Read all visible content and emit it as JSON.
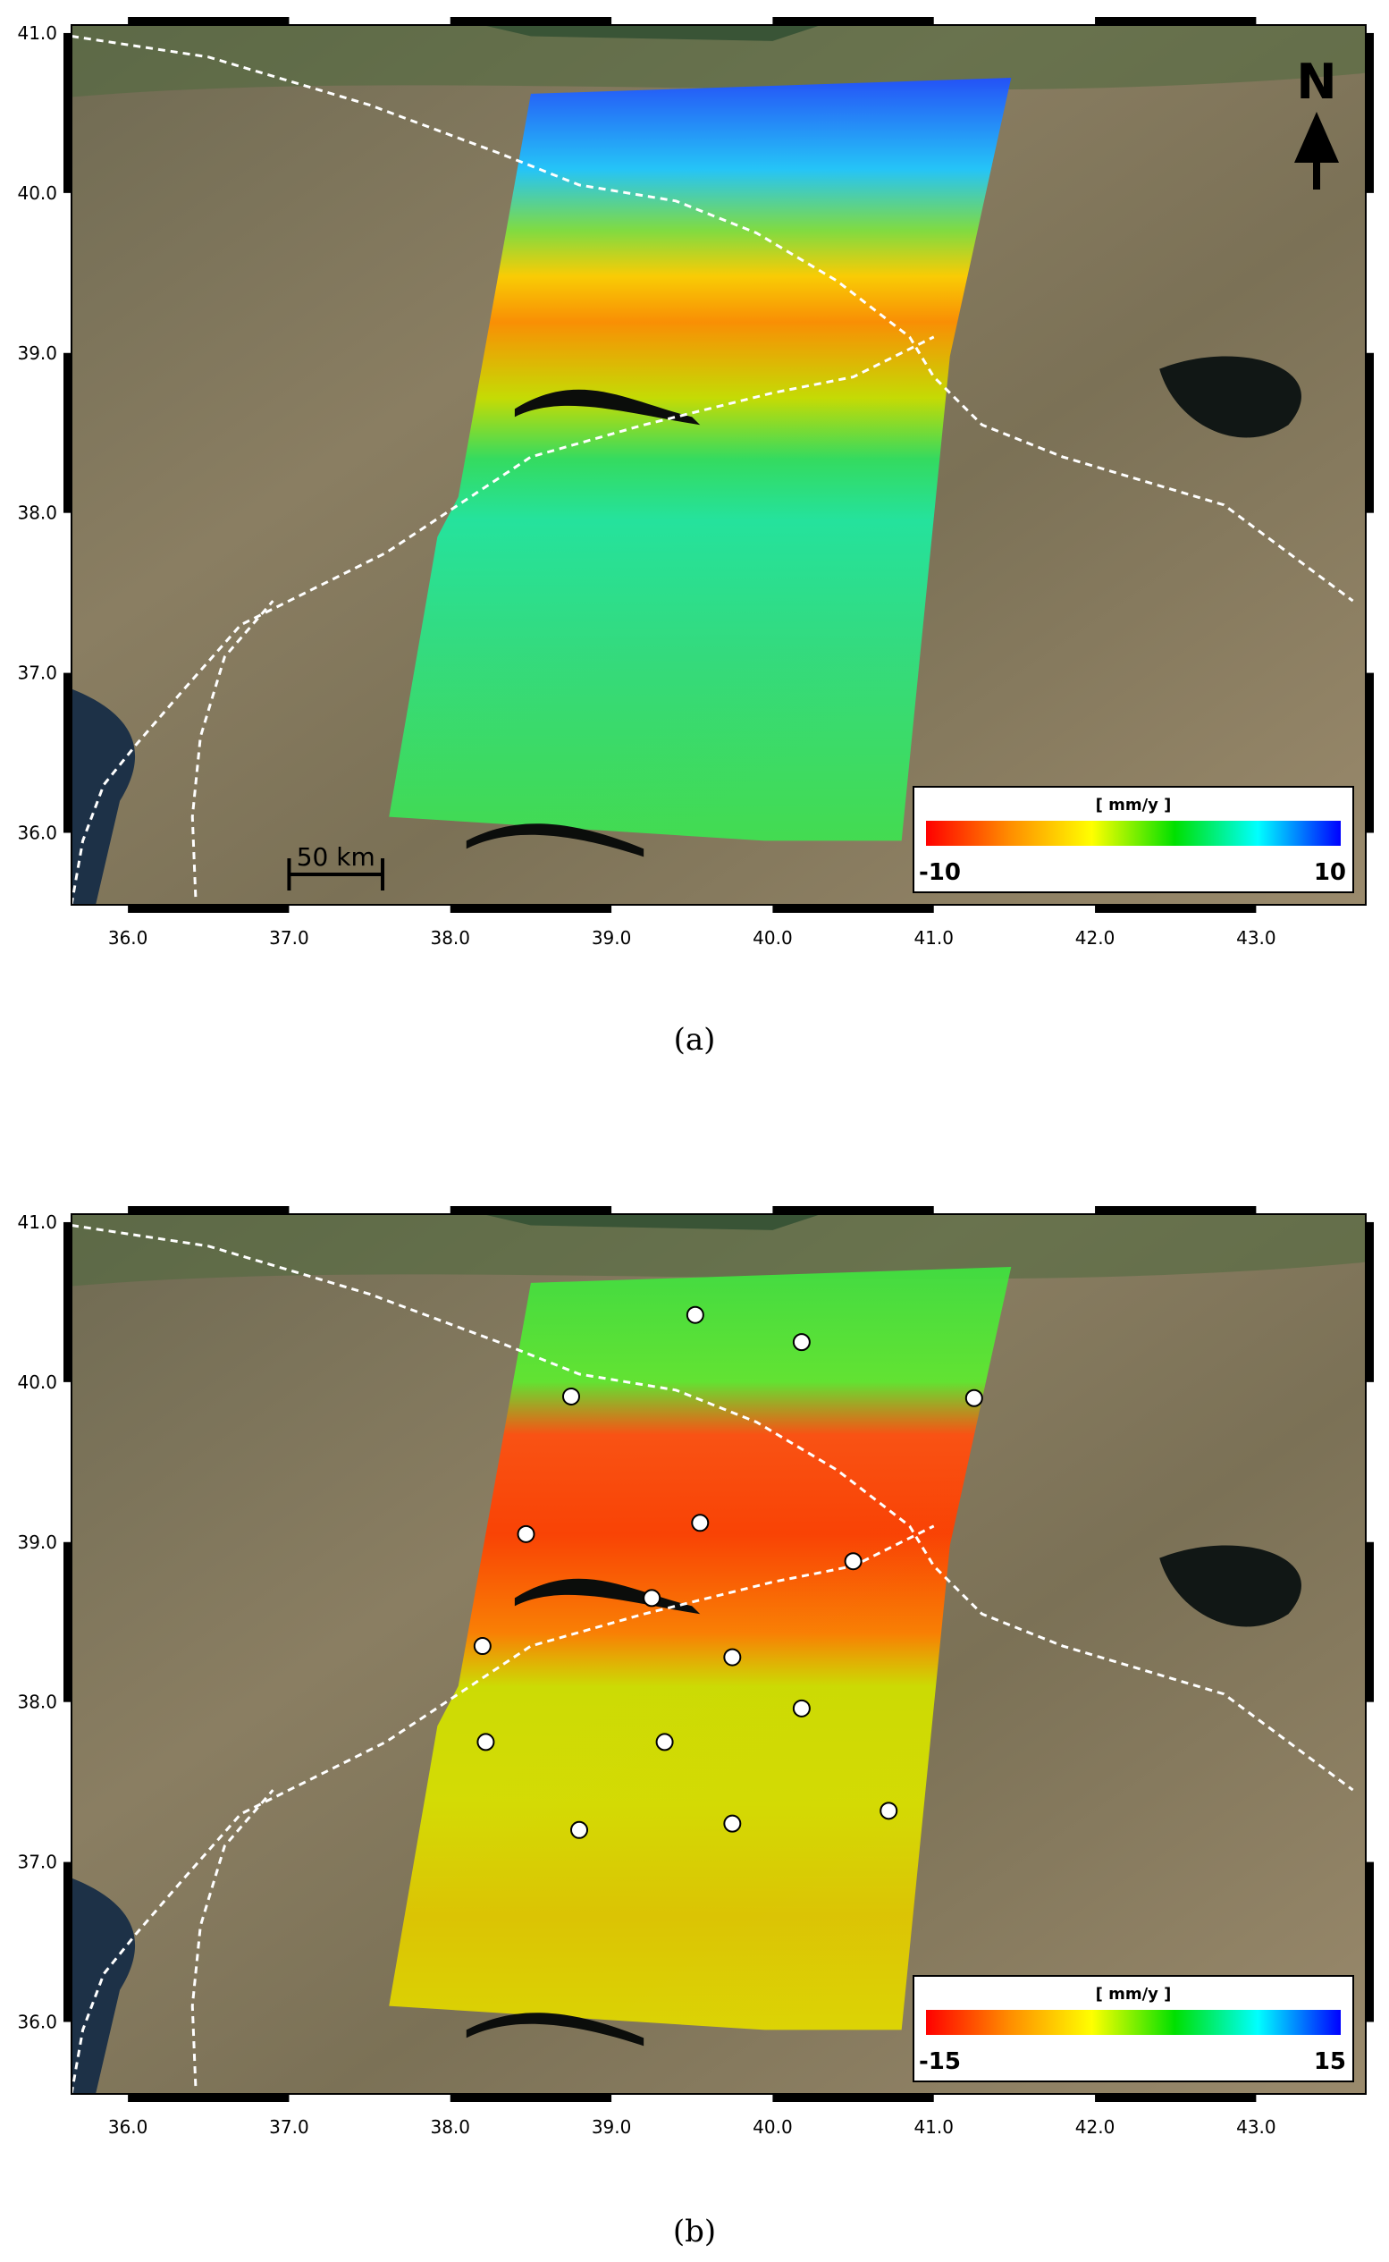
{
  "panels": [
    {
      "id": "a",
      "caption": "(a)",
      "x_ticks": [
        "36.0",
        "37.0",
        "38.0",
        "39.0",
        "40.0",
        "41.0",
        "42.0",
        "43.0"
      ],
      "y_ticks": [
        "41.0",
        "40.0",
        "39.0",
        "38.0",
        "37.0",
        "36.0"
      ],
      "colorbar": {
        "unit": "[ mm/y ]",
        "min_label": "-10",
        "max_label": "10",
        "min": -10,
        "max": 10,
        "colors": [
          "#ff0000",
          "#ff8c00",
          "#ffff00",
          "#00e000",
          "#00ffff",
          "#0000ff"
        ]
      },
      "north_arrow": "N",
      "scale_bar": "50 km",
      "gps_stations": []
    },
    {
      "id": "b",
      "caption": "(b)",
      "x_ticks": [
        "36.0",
        "37.0",
        "38.0",
        "39.0",
        "40.0",
        "41.0",
        "42.0",
        "43.0"
      ],
      "y_ticks": [
        "41.0",
        "40.0",
        "39.0",
        "38.0",
        "37.0",
        "36.0"
      ],
      "colorbar": {
        "unit": "[ mm/y ]",
        "min_label": "-15",
        "max_label": "15",
        "min": -15,
        "max": 15,
        "colors": [
          "#ff0000",
          "#ff8c00",
          "#ffff00",
          "#00e000",
          "#00ffff",
          "#0000ff"
        ]
      },
      "gps_stations": [
        {
          "lon": 39.52,
          "lat": 40.42
        },
        {
          "lon": 40.18,
          "lat": 40.25
        },
        {
          "lon": 41.25,
          "lat": 39.9
        },
        {
          "lon": 38.75,
          "lat": 39.91
        },
        {
          "lon": 38.47,
          "lat": 39.05
        },
        {
          "lon": 39.55,
          "lat": 39.12
        },
        {
          "lon": 40.5,
          "lat": 38.88
        },
        {
          "lon": 39.25,
          "lat": 38.65
        },
        {
          "lon": 38.2,
          "lat": 38.35
        },
        {
          "lon": 39.75,
          "lat": 38.28
        },
        {
          "lon": 40.18,
          "lat": 37.96
        },
        {
          "lon": 38.22,
          "lat": 37.75
        },
        {
          "lon": 39.33,
          "lat": 37.75
        },
        {
          "lon": 38.8,
          "lat": 37.2
        },
        {
          "lon": 39.75,
          "lat": 37.24
        },
        {
          "lon": 40.72,
          "lat": 37.32
        }
      ]
    }
  ],
  "map_extent": {
    "lon_min": 35.65,
    "lon_max": 43.68,
    "lat_min": 35.55,
    "lat_max": 41.05
  },
  "fault_lines": [
    [
      [
        35.65,
        40.98
      ],
      [
        36.5,
        40.85
      ],
      [
        37.5,
        40.55
      ],
      [
        38.3,
        40.25
      ],
      [
        38.8,
        40.05
      ],
      [
        39.4,
        39.95
      ],
      [
        39.9,
        39.75
      ],
      [
        40.4,
        39.45
      ],
      [
        40.85,
        39.1
      ],
      [
        41.0,
        38.85
      ],
      [
        41.3,
        38.55
      ],
      [
        41.8,
        38.35
      ],
      [
        42.8,
        38.05
      ],
      [
        43.6,
        37.45
      ]
    ],
    [
      [
        35.65,
        35.55
      ],
      [
        35.72,
        35.95
      ],
      [
        35.85,
        36.3
      ],
      [
        36.05,
        36.55
      ],
      [
        36.35,
        36.9
      ],
      [
        36.7,
        37.3
      ],
      [
        37.0,
        37.45
      ],
      [
        37.6,
        37.75
      ],
      [
        38.5,
        38.35
      ],
      [
        39.2,
        38.55
      ],
      [
        40.0,
        38.75
      ],
      [
        40.5,
        38.85
      ],
      [
        41.0,
        39.1
      ]
    ],
    [
      [
        36.42,
        35.6
      ],
      [
        36.4,
        36.1
      ],
      [
        36.45,
        36.6
      ],
      [
        36.6,
        37.1
      ],
      [
        36.9,
        37.45
      ]
    ]
  ]
}
